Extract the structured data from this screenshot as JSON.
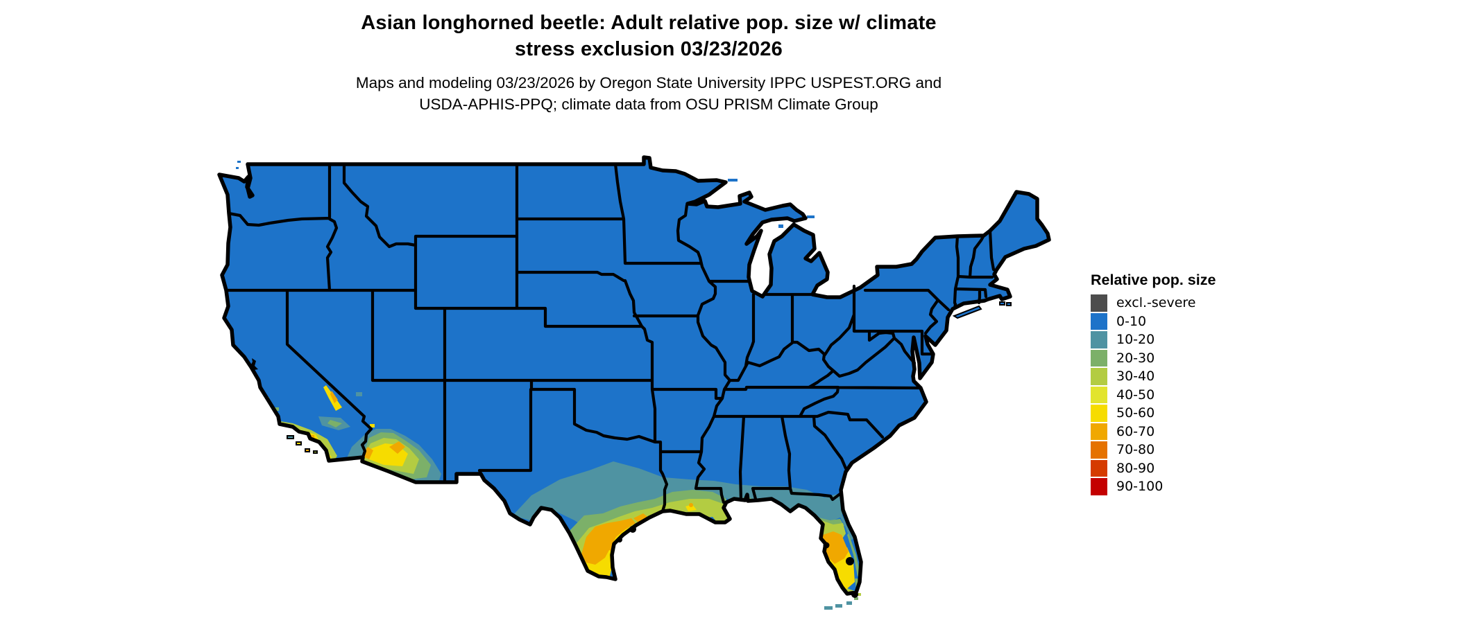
{
  "title": {
    "line1": "Asian longhorned beetle: Adult relative pop. size w/ climate",
    "line2": "stress exclusion 03/23/2026"
  },
  "subtitle": {
    "line1": "Maps and modeling 03/23/2026 by Oregon State University IPPC USPEST.ORG and",
    "line2": "USDA-APHIS-PPQ; climate data from OSU PRISM Climate Group"
  },
  "legend": {
    "title": "Relative pop. size",
    "entries": [
      {
        "label": "excl.-severe",
        "color": "#4d4d4d"
      },
      {
        "label": "0-10",
        "color": "#1d73c9"
      },
      {
        "label": "10-20",
        "color": "#4f93a2"
      },
      {
        "label": "20-30",
        "color": "#7cb069"
      },
      {
        "label": "30-40",
        "color": "#b3cc42"
      },
      {
        "label": "40-50",
        "color": "#e2e42d"
      },
      {
        "label": "50-60",
        "color": "#f6dc00"
      },
      {
        "label": "60-70",
        "color": "#f0a800"
      },
      {
        "label": "70-80",
        "color": "#e57200"
      },
      {
        "label": "80-90",
        "color": "#d53b00"
      },
      {
        "label": "90-100",
        "color": "#c40000"
      }
    ]
  },
  "map": {
    "region": "Contiguous United States",
    "base_bin": "0-10",
    "border_color": "#000000",
    "background": "#ffffff"
  }
}
